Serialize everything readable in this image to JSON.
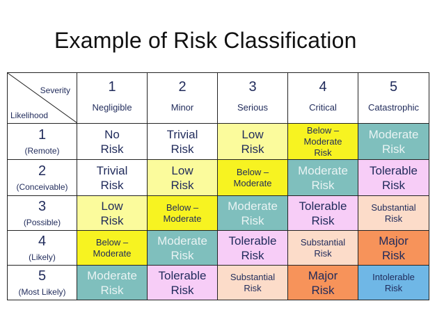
{
  "title": "Example of Risk Classification",
  "header": {
    "severity_label": "Severity",
    "likelihood_label": "Likelihood",
    "columns": [
      {
        "num": "1",
        "name": "Negligible"
      },
      {
        "num": "2",
        "name": "Minor"
      },
      {
        "num": "3",
        "name": "Serious"
      },
      {
        "num": "4",
        "name": "Critical"
      },
      {
        "num": "5",
        "name": "Catastrophic"
      }
    ]
  },
  "rows": [
    {
      "num": "1",
      "name": "(Remote)",
      "cells": [
        {
          "lines": [
            "No",
            "Risk"
          ],
          "color": "#ffffff",
          "size": "big"
        },
        {
          "lines": [
            "Trivial",
            "Risk"
          ],
          "color": "#ffffff",
          "size": "big"
        },
        {
          "lines": [
            "Low",
            "Risk"
          ],
          "color": "#fbfb9c",
          "size": "big"
        },
        {
          "lines": [
            "Below –",
            "Moderate",
            "Risk"
          ],
          "color": "#f7f321",
          "size": "small"
        },
        {
          "lines": [
            "Moderate",
            "Risk"
          ],
          "color": "#7fbfbd",
          "size": "big",
          "light": true
        }
      ]
    },
    {
      "num": "2",
      "name": "(Conceivable)",
      "cells": [
        {
          "lines": [
            "Trivial",
            "Risk"
          ],
          "color": "#ffffff",
          "size": "big"
        },
        {
          "lines": [
            "Low",
            "Risk"
          ],
          "color": "#fbfb9c",
          "size": "big"
        },
        {
          "lines": [
            "Below –",
            "Moderate"
          ],
          "color": "#f7f321",
          "size": "small"
        },
        {
          "lines": [
            "Moderate",
            "Risk"
          ],
          "color": "#7fbfbd",
          "size": "big",
          "light": true
        },
        {
          "lines": [
            "Tolerable",
            "Risk"
          ],
          "color": "#f7cdf7",
          "size": "big"
        }
      ]
    },
    {
      "num": "3",
      "name": "(Possible)",
      "cells": [
        {
          "lines": [
            "Low",
            "Risk"
          ],
          "color": "#fbfb9c",
          "size": "big"
        },
        {
          "lines": [
            "Below –",
            "Moderate"
          ],
          "color": "#f7f321",
          "size": "small"
        },
        {
          "lines": [
            "Moderate",
            "Risk"
          ],
          "color": "#7fbfbd",
          "size": "big",
          "light": true
        },
        {
          "lines": [
            "Tolerable",
            "Risk"
          ],
          "color": "#f7cdf7",
          "size": "big"
        },
        {
          "lines": [
            "Substantial",
            "Risk"
          ],
          "color": "#fcdcc9",
          "size": "small"
        }
      ]
    },
    {
      "num": "4",
      "name": "(Likely)",
      "cells": [
        {
          "lines": [
            "Below –",
            "Moderate"
          ],
          "color": "#f7f321",
          "size": "small"
        },
        {
          "lines": [
            "Moderate",
            "Risk"
          ],
          "color": "#7fbfbd",
          "size": "big",
          "light": true
        },
        {
          "lines": [
            "Tolerable",
            "Risk"
          ],
          "color": "#f7cdf7",
          "size": "big"
        },
        {
          "lines": [
            "Substantial",
            "Risk"
          ],
          "color": "#fcdcc9",
          "size": "small"
        },
        {
          "lines": [
            "Major",
            "Risk"
          ],
          "color": "#f7935a",
          "size": "big"
        }
      ]
    },
    {
      "num": "5",
      "name": "(Most Likely)",
      "cells": [
        {
          "lines": [
            "Moderate",
            "Risk"
          ],
          "color": "#7fbfbd",
          "size": "big",
          "light": true
        },
        {
          "lines": [
            "Tolerable",
            "Risk"
          ],
          "color": "#f7cdf7",
          "size": "big"
        },
        {
          "lines": [
            "Substantial",
            "Risk"
          ],
          "color": "#fcdcc9",
          "size": "small"
        },
        {
          "lines": [
            "Major",
            "Risk"
          ],
          "color": "#f7935a",
          "size": "big"
        },
        {
          "lines": [
            "Intolerable",
            "Risk"
          ],
          "color": "#6fb7e6",
          "size": "small"
        }
      ]
    }
  ]
}
